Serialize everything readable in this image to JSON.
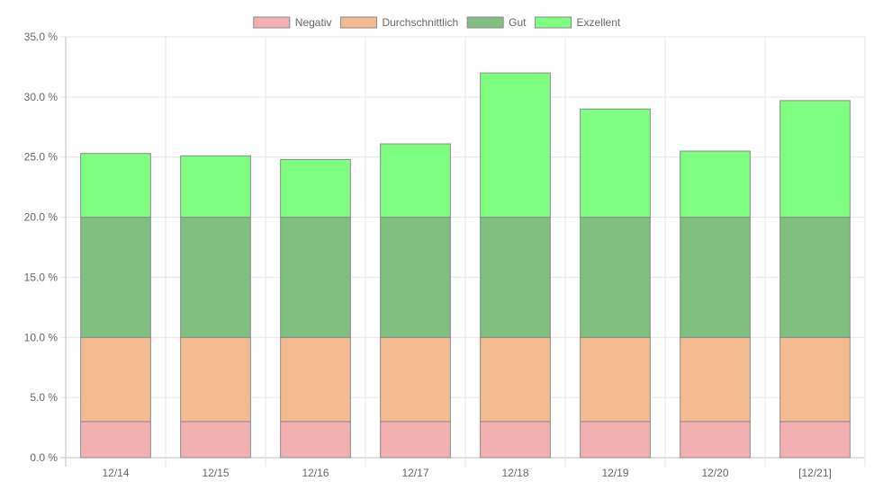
{
  "chart_data": {
    "type": "bar",
    "stacked": true,
    "categories": [
      "12/14",
      "12/15",
      "12/16",
      "12/17",
      "12/18",
      "12/19",
      "12/20",
      "[12/21]"
    ],
    "series": [
      {
        "name": "Negativ",
        "color": "#f4b0b0",
        "values": [
          3,
          3,
          3,
          3,
          3,
          3,
          3,
          3
        ]
      },
      {
        "name": "Durchschnittlich",
        "color": "#f4bb90",
        "values": [
          7,
          7,
          7,
          7,
          7,
          7,
          7,
          7
        ]
      },
      {
        "name": "Gut",
        "color": "#7fbf7f",
        "values": [
          10,
          10,
          10,
          10,
          10,
          10,
          10,
          10
        ]
      },
      {
        "name": "Exzellent",
        "color": "#7fff7f",
        "values": [
          5.3,
          5.1,
          4.8,
          6.1,
          12,
          9,
          5.5,
          9.7
        ]
      }
    ],
    "ylim": [
      0,
      35
    ],
    "yticks": [
      0,
      5,
      10,
      15,
      20,
      25,
      30,
      35
    ],
    "ytick_labels": [
      "0.0 %",
      "5.0 %",
      "10.0 %",
      "15.0 %",
      "20.0 %",
      "25.0 %",
      "30.0 %",
      "35.0 %"
    ],
    "grid": true,
    "legend_position": "top",
    "title": "",
    "xlabel": "",
    "ylabel": ""
  }
}
